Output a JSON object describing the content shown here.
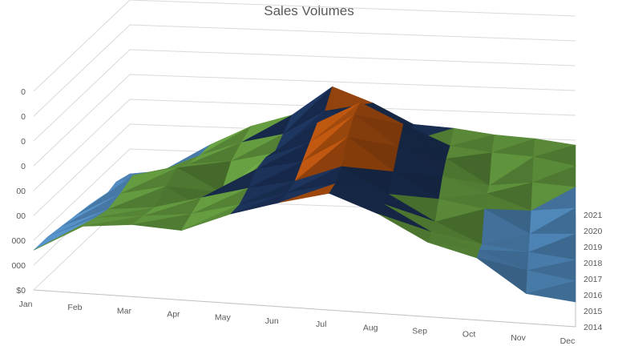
{
  "chart_data": {
    "type": "surface-3d",
    "title": "Sales Volumes",
    "months": [
      "Jan",
      "Feb",
      "Mar",
      "Apr",
      "May",
      "Jun",
      "Jul",
      "Aug",
      "Sep",
      "Oct",
      "Nov",
      "Dec"
    ],
    "years": [
      "2014",
      "2015",
      "2016",
      "2017",
      "2018",
      "2019",
      "2020",
      "2021"
    ],
    "y_tick_labels": [
      "$0",
      "000",
      "000",
      "00",
      "00",
      "0",
      "0",
      "0",
      "0"
    ],
    "grid": true,
    "legend": "none",
    "band_colors": [
      "#f2b600",
      "#5b9bd5",
      "#70ad47",
      "#1f3864",
      "#c55a11"
    ],
    "values": [
      [
        1.6,
        2.7,
        2.9,
        2.8,
        3.6,
        4.2,
        4.7,
        4.0,
        3.0,
        2.5,
        1.2,
        1.0
      ],
      [
        1.6,
        2.5,
        2.7,
        2.9,
        3.4,
        4.0,
        4.5,
        3.8,
        2.8,
        2.2,
        1.5,
        1.2
      ],
      [
        1.5,
        2.3,
        2.5,
        3.0,
        3.5,
        3.9,
        4.6,
        3.6,
        2.6,
        1.8,
        1.6,
        1.4
      ],
      [
        1.4,
        2.4,
        2.8,
        1.8,
        3.7,
        4.1,
        5.2,
        3.9,
        2.9,
        2.6,
        1.7,
        1.8
      ],
      [
        1.3,
        2.6,
        3.0,
        2.1,
        3.6,
        4.3,
        5.5,
        4.3,
        3.2,
        2.6,
        2.0,
        2.2
      ],
      [
        1.0,
        2.0,
        2.6,
        2.8,
        3.2,
        4.5,
        5.4,
        4.6,
        3.3,
        2.3,
        2.5,
        2.4
      ],
      [
        1.2,
        1.6,
        2.4,
        3.0,
        3.4,
        4.4,
        4.3,
        3.3,
        3.2,
        3.0,
        2.9,
        2.6
      ],
      [
        1.0,
        1.2,
        2.3,
        3.1,
        3.6,
        4.8,
        4.2,
        3.4,
        3.3,
        3.1,
        3.0,
        2.8
      ]
    ]
  }
}
